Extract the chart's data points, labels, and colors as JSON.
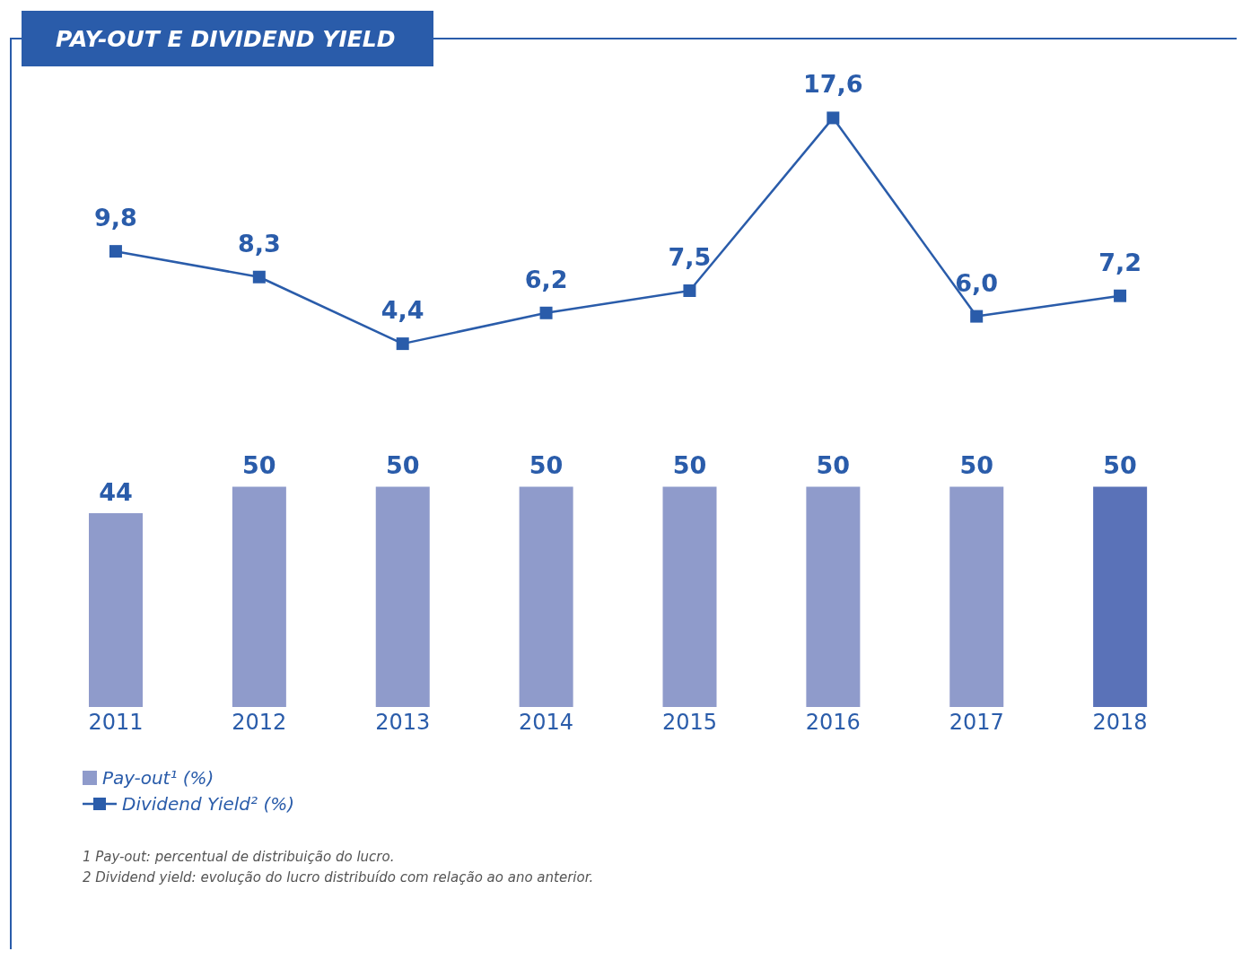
{
  "chart_data": [
    {
      "type": "line",
      "title": "PAY-OUT E DIVIDEND YIELD",
      "categories": [
        null,
        null,
        null,
        null,
        null,
        null,
        null,
        null
      ],
      "tick_labels": false,
      "marker": "square",
      "legend": "bottom left",
      "series": [
        {
          "name": "Dividend Yield² (%)",
          "color": "#2a5caa",
          "values": [
            9.8,
            8.3,
            4.4,
            6.2,
            7.5,
            17.6,
            6.0,
            7.2
          ],
          "value_labels": [
            "9,8",
            "8,3",
            "4,4",
            "6,2",
            "7,5",
            "17,6",
            "6,0",
            "7,2"
          ]
        }
      ]
    },
    {
      "type": "bar",
      "categories": [
        "2011",
        "2012",
        "2013",
        "2014",
        "2015",
        "2016",
        "2017",
        "2018"
      ],
      "legend": "bottom left",
      "series": [
        {
          "name": "Pay-out¹ (%)",
          "color": "#8f9bcb",
          "colors": [
            "#8f9bcb",
            "#8f9bcb",
            "#8f9bcb",
            "#8f9bcb",
            "#8f9bcb",
            "#8f9bcb",
            "#8f9bcb",
            "#5a72b8"
          ],
          "values": [
            44,
            50,
            50,
            50,
            50,
            50,
            50,
            50
          ],
          "value_labels": [
            "44",
            "50",
            "50",
            "50",
            "50",
            "50",
            "50",
            "50"
          ]
        }
      ],
      "annotations": [
        "1 Pay-out: percentual de distribuição do lucro.",
        "2 Dividend yield: evolução do lucro distribuído com relação ao ano anterior."
      ]
    }
  ]
}
